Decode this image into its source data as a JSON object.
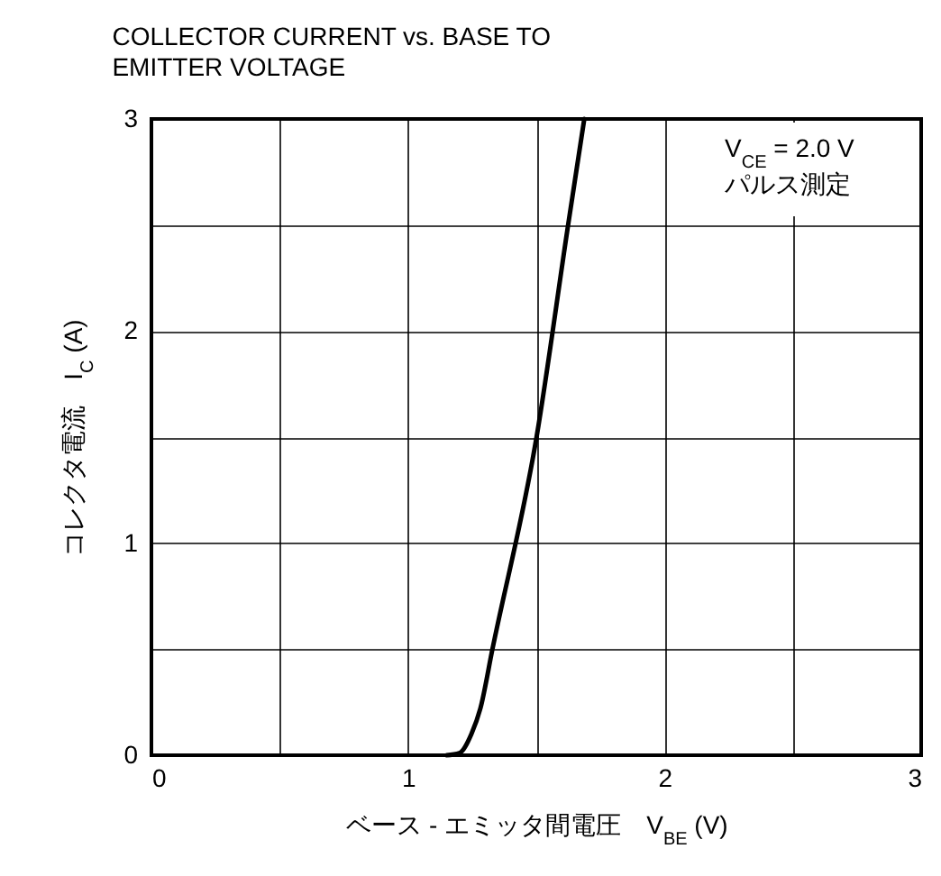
{
  "chart_data": {
    "type": "line",
    "title": "COLLECTOR CURRENT vs. BASE TO EMITTER VOLTAGE",
    "xlabel": "ベース - エミッタ間電圧　V$_{BE}$ (V)",
    "ylabel": "コレクタ電流　I$_{C}$ (A)",
    "annotations": [
      "V$_{CE}$ = 2.0 V",
      "パルス測定"
    ],
    "x": [
      1.15,
      1.2,
      1.247,
      1.282,
      1.329,
      1.501,
      1.624,
      1.687
    ],
    "series": [
      {
        "color": "#000000",
        "values": [
          0,
          0.01,
          0.1,
          0.22,
          0.5,
          1.5,
          2.5,
          3.0
        ]
      }
    ],
    "xlim": [
      0,
      3
    ],
    "ylim": [
      0,
      3
    ],
    "xticks": [
      0,
      {
        "value": 0.5,
        "label": null
      },
      1,
      {
        "value": 1.5,
        "label": null
      },
      2,
      {
        "value": 2.5,
        "label": null
      },
      3
    ],
    "yticks": [
      0,
      {
        "value": 0.5,
        "label": null
      },
      1,
      {
        "value": 1.5,
        "label": null
      },
      2,
      {
        "value": 2.5,
        "label": null
      },
      3
    ],
    "grid": true,
    "legend": false,
    "marker": "none",
    "line_style": "solid"
  }
}
